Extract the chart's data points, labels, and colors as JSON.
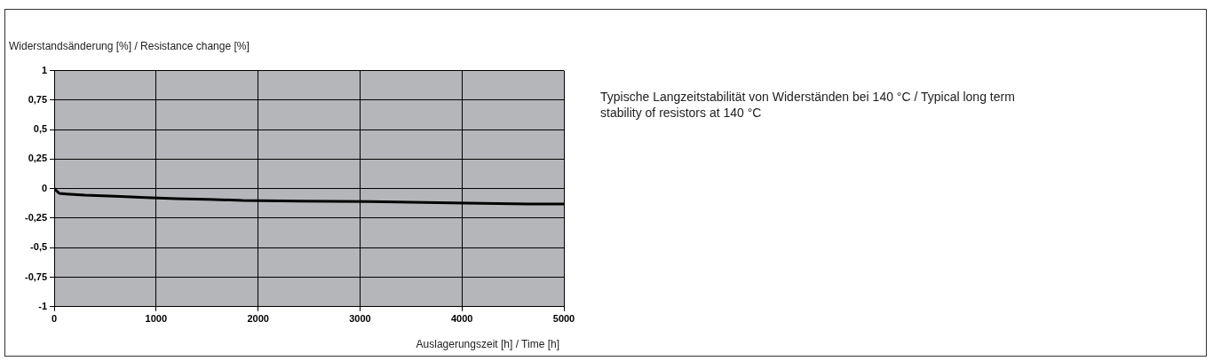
{
  "chart_data": {
    "type": "line",
    "title": "Typische Langzeitstabilität von Widerständen bei 140 °C / Typical long term stability of resistors at 140 °C",
    "ylabel": "Widerstandsänderung [%]  / Resistance change [%]",
    "xlabel": "Auslagerungszeit [h] / Time [h]",
    "series": [
      {
        "color": "#000000",
        "x": [
          0,
          50,
          120,
          300,
          600,
          900,
          1200,
          1500,
          1850,
          2400,
          3100,
          3900,
          4650,
          5000
        ],
        "values": [
          0,
          -0.04,
          -0.045,
          -0.055,
          -0.065,
          -0.075,
          -0.085,
          -0.09,
          -0.1,
          -0.105,
          -0.11,
          -0.12,
          -0.13,
          -0.13
        ]
      }
    ],
    "xlim": [
      0,
      5000
    ],
    "xticks": [
      0,
      1000,
      2000,
      3000,
      4000,
      5000
    ],
    "ylim": [
      -1,
      1
    ],
    "yticks": [
      {
        "value": -1,
        "label": "-1"
      },
      {
        "value": -0.75,
        "label": "-0,75"
      },
      {
        "value": -0.5,
        "label": "-0,5"
      },
      {
        "value": -0.25,
        "label": "-0,25"
      },
      0,
      {
        "value": 0.25,
        "label": "0,25"
      },
      {
        "value": 0.5,
        "label": "0,5"
      },
      {
        "value": 0.75,
        "label": "0,75"
      },
      1
    ],
    "grid": true,
    "legend": false,
    "marker": "none",
    "line_style": "solid"
  }
}
